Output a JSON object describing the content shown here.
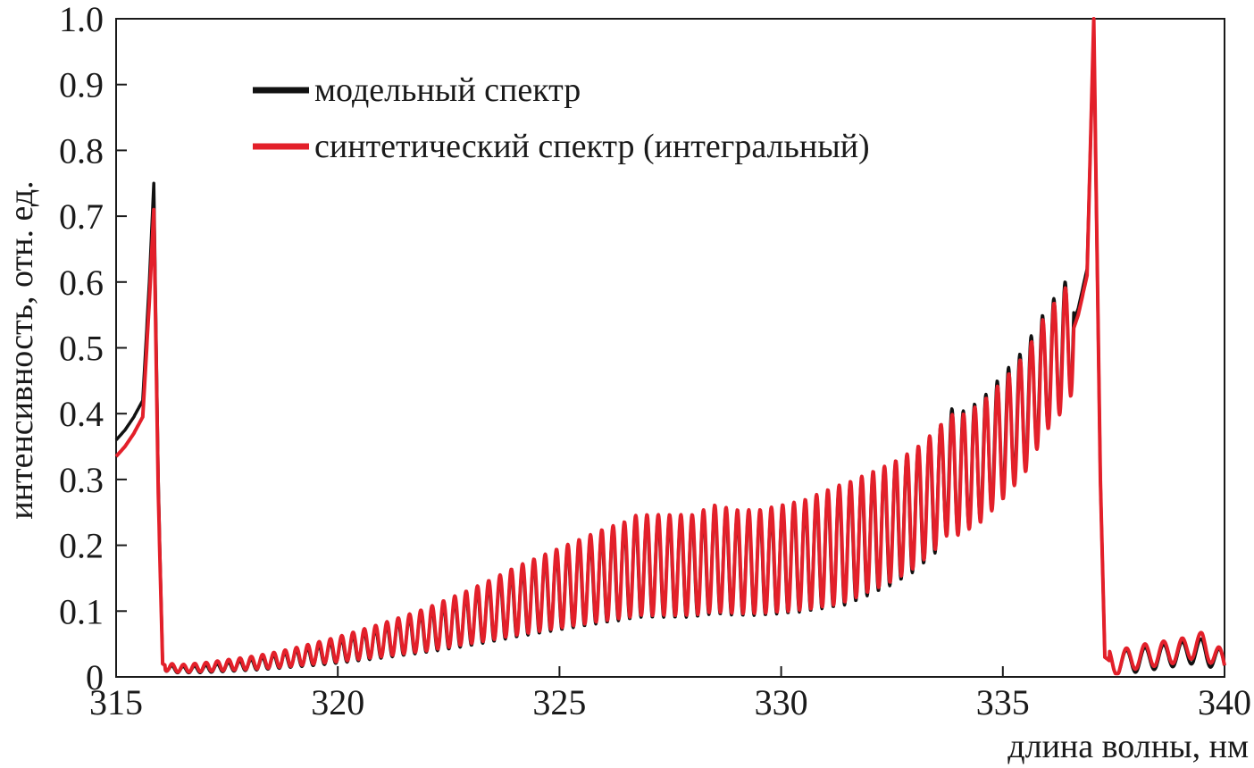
{
  "chart_data": {
    "type": "line",
    "title": "",
    "xlabel": "длина волны, нм",
    "ylabel": "интенсивность, отн. ед.",
    "xlim": [
      315,
      340
    ],
    "ylim": [
      0,
      1.0
    ],
    "x_ticks": [
      315,
      320,
      325,
      330,
      335,
      340
    ],
    "x_tick_labels": [
      "315",
      "320",
      "325",
      "330",
      "335",
      "340"
    ],
    "y_ticks": [
      0,
      0.1,
      0.2,
      0.3,
      0.4,
      0.5,
      0.6,
      0.7,
      0.8,
      0.9,
      1.0
    ],
    "y_tick_labels": [
      "0",
      "0.1",
      "0.2",
      "0.3",
      "0.4",
      "0.5",
      "0.6",
      "0.7",
      "0.8",
      "0.9",
      "1.0"
    ],
    "grid": false,
    "legend_position": "top-left",
    "series": [
      {
        "name": "модельный спектр",
        "color": "#111111",
        "x": [
          315.0,
          315.2,
          315.4,
          315.6,
          315.75,
          315.85,
          315.95,
          316.05,
          316.2,
          316.5,
          317.0,
          317.5,
          318.0,
          318.5,
          319.0,
          319.5,
          320.0,
          320.5,
          321.0,
          321.5,
          322.0,
          322.5,
          323.0,
          323.5,
          324.0,
          324.5,
          325.0,
          325.5,
          326.0,
          326.5,
          326.75,
          327.0,
          327.5,
          328.0,
          328.5,
          329.0,
          329.5,
          330.0,
          330.5,
          331.0,
          331.5,
          332.0,
          332.5,
          333.0,
          333.5,
          333.8,
          334.0,
          334.5,
          335.0,
          335.5,
          335.8,
          336.0,
          336.3,
          336.5,
          336.7,
          336.9,
          337.05,
          337.2,
          337.3,
          337.5,
          338.0,
          338.5,
          339.0,
          339.5,
          340.0
        ],
        "y": [
          0.36,
          0.375,
          0.395,
          0.42,
          0.6,
          0.75,
          0.3,
          0.02,
          0.012,
          0.011,
          0.012,
          0.015,
          0.018,
          0.022,
          0.027,
          0.032,
          0.038,
          0.045,
          0.052,
          0.06,
          0.068,
          0.077,
          0.087,
          0.098,
          0.11,
          0.12,
          0.13,
          0.14,
          0.15,
          0.158,
          0.165,
          0.165,
          0.165,
          0.165,
          0.175,
          0.17,
          0.17,
          0.175,
          0.18,
          0.19,
          0.2,
          0.215,
          0.23,
          0.25,
          0.28,
          0.32,
          0.31,
          0.33,
          0.37,
          0.41,
          0.45,
          0.47,
          0.5,
          0.52,
          0.56,
          0.62,
          0.99,
          0.3,
          0.03,
          0.02,
          0.025,
          0.03,
          0.035,
          0.04,
          0.02
        ]
      },
      {
        "name": "синтетический спектр (интегральный)",
        "color": "#e3202a",
        "x": [
          315.0,
          315.2,
          315.4,
          315.6,
          315.75,
          315.85,
          315.95,
          316.05,
          316.2,
          316.5,
          317.0,
          317.5,
          318.0,
          318.5,
          319.0,
          319.5,
          320.0,
          320.5,
          321.0,
          321.5,
          322.0,
          322.5,
          323.0,
          323.5,
          324.0,
          324.5,
          325.0,
          325.5,
          326.0,
          326.5,
          326.75,
          327.0,
          327.5,
          328.0,
          328.5,
          329.0,
          329.5,
          330.0,
          330.5,
          331.0,
          331.5,
          332.0,
          332.5,
          333.0,
          333.5,
          333.8,
          334.0,
          334.5,
          335.0,
          335.5,
          335.8,
          336.0,
          336.3,
          336.5,
          336.7,
          336.9,
          337.05,
          337.2,
          337.3,
          337.5,
          338.0,
          338.5,
          339.0,
          339.5,
          340.0
        ],
        "y": [
          0.335,
          0.35,
          0.37,
          0.395,
          0.57,
          0.71,
          0.28,
          0.02,
          0.014,
          0.013,
          0.015,
          0.018,
          0.021,
          0.025,
          0.03,
          0.036,
          0.042,
          0.049,
          0.056,
          0.064,
          0.072,
          0.082,
          0.092,
          0.103,
          0.115,
          0.125,
          0.135,
          0.145,
          0.155,
          0.163,
          0.17,
          0.17,
          0.17,
          0.17,
          0.18,
          0.175,
          0.175,
          0.18,
          0.185,
          0.195,
          0.205,
          0.22,
          0.235,
          0.255,
          0.285,
          0.31,
          0.305,
          0.325,
          0.36,
          0.4,
          0.44,
          0.465,
          0.49,
          0.51,
          0.55,
          0.61,
          1.0,
          0.3,
          0.03,
          0.02,
          0.03,
          0.035,
          0.04,
          0.05,
          0.02
        ]
      }
    ]
  }
}
